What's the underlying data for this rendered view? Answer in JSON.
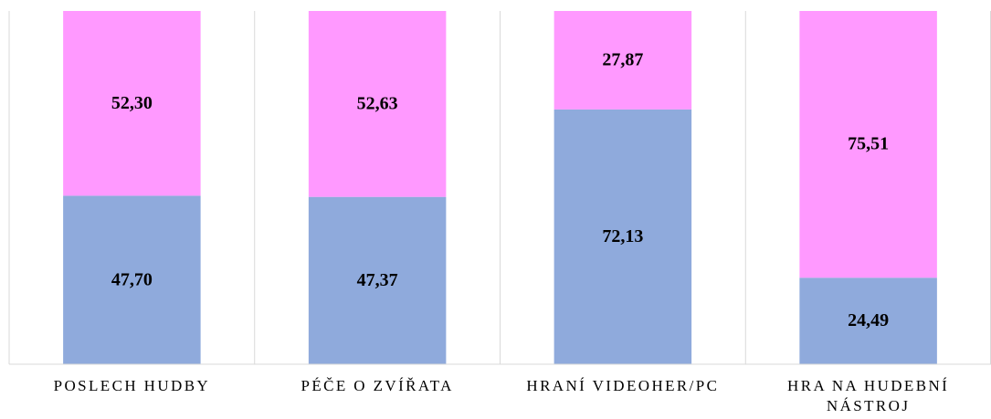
{
  "chart_data": {
    "type": "stacked_bar",
    "categories": [
      "POSLECH HUDBY",
      "PÉČE O ZVÍŘATA",
      "HRANÍ VIDEOHER/PC",
      "HRA NA HUDEBNÍ NÁSTROJ"
    ],
    "series": [
      {
        "color": "#8faadc",
        "values": [
          47.7,
          47.37,
          72.13,
          24.49
        ],
        "value_labels": [
          "47,70",
          "47,37",
          "72,13",
          "24,49"
        ]
      },
      {
        "color": "#ff99ff",
        "values": [
          52.3,
          52.63,
          27.87,
          75.51
        ],
        "value_labels": [
          "52,30",
          "52,63",
          "27,87",
          "75,51"
        ]
      }
    ]
  }
}
